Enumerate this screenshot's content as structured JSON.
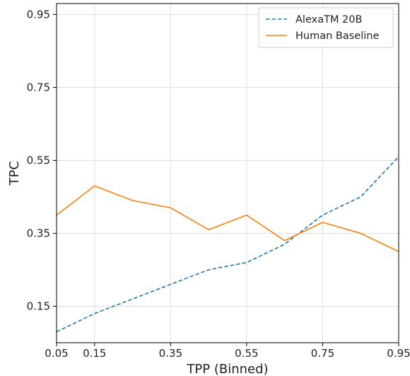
{
  "chart_data": {
    "type": "line",
    "xlabel": "TPP (Binned)",
    "ylabel": "TPC",
    "xlim": [
      0.05,
      0.95
    ],
    "ylim": [
      0.05,
      0.98
    ],
    "xticks": [
      "0.05",
      "0.15",
      "0.35",
      "0.55",
      "0.75",
      "0.95"
    ],
    "yticks": [
      "0.15",
      "0.35",
      "0.55",
      "0.75",
      "0.95"
    ],
    "grid": true,
    "legend_position": "top-right",
    "series": [
      {
        "name": "AlexaTM 20B",
        "style": "dashed",
        "color": "#1f77b4",
        "x": [
          0.05,
          0.15,
          0.25,
          0.35,
          0.45,
          0.55,
          0.65,
          0.75,
          0.85,
          0.95
        ],
        "values": [
          0.08,
          0.13,
          0.17,
          0.21,
          0.25,
          0.27,
          0.32,
          0.4,
          0.45,
          0.56
        ]
      },
      {
        "name": "Human Baseline",
        "style": "solid",
        "color": "#ff7f0e",
        "x": [
          0.05,
          0.15,
          0.25,
          0.35,
          0.45,
          0.55,
          0.65,
          0.75,
          0.85,
          0.95
        ],
        "values": [
          0.4,
          0.48,
          0.44,
          0.42,
          0.36,
          0.4,
          0.33,
          0.38,
          0.35,
          0.3
        ]
      }
    ]
  }
}
